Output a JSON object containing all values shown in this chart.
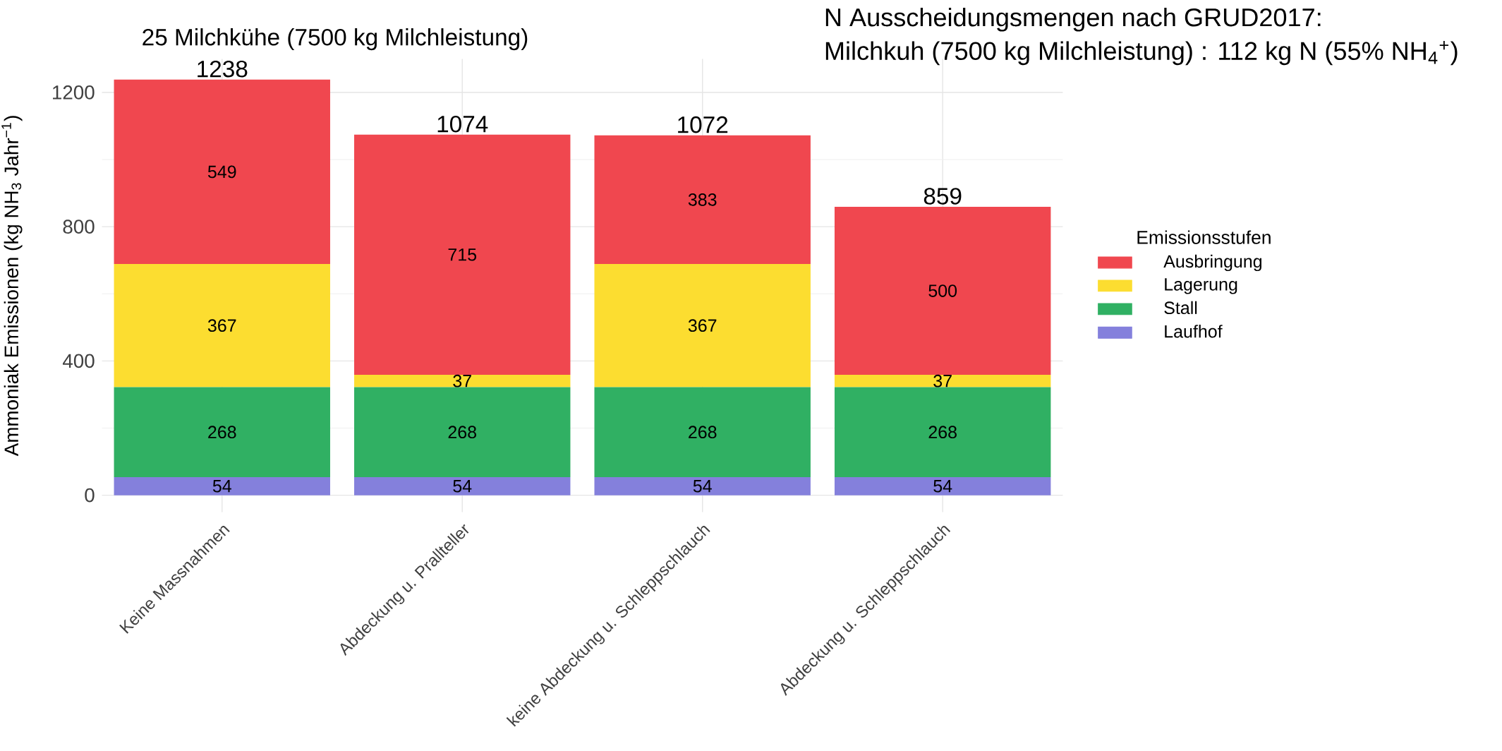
{
  "chart_data": {
    "type": "bar",
    "stacked": true,
    "title": "25 Milchkühe (7500 kg Milchleistung)",
    "ylabel": "Ammoniak Emissionen (kg NH$_{3}$ Jahr$^{−1}$)",
    "legend_title": "Emissionsstufen",
    "annotations": [
      "N Ausscheidungsmengen nach GRUD2017:",
      "Milchkuh (7500 kg Milchleistung) : 112 kg N (55% NH$_{4}$$^{+}$)"
    ],
    "categories": [
      "Keine Massnahmen",
      "Abdeckung u. Prallteller",
      "keine Abdeckung u. Schleppschlauch",
      "Abdeckung u. Schleppschlauch"
    ],
    "series": [
      {
        "name": "Laufhof",
        "color": "#8480dc",
        "values": [
          54,
          54,
          54,
          54
        ]
      },
      {
        "name": "Stall",
        "color": "#30b063",
        "values": [
          268,
          268,
          268,
          268
        ]
      },
      {
        "name": "Lagerung",
        "color": "#fcdd30",
        "values": [
          367,
          37,
          367,
          37
        ]
      },
      {
        "name": "Ausbringung",
        "color": "#f0474f",
        "values": [
          549,
          715,
          383,
          500
        ]
      }
    ],
    "totals": [
      "1238",
      "1074",
      "1072",
      "859"
    ],
    "data_labels": true,
    "ylim": [
      -50,
      1300
    ],
    "yticks": [
      0,
      400,
      800,
      1200
    ],
    "grid": true,
    "legend": "right"
  }
}
